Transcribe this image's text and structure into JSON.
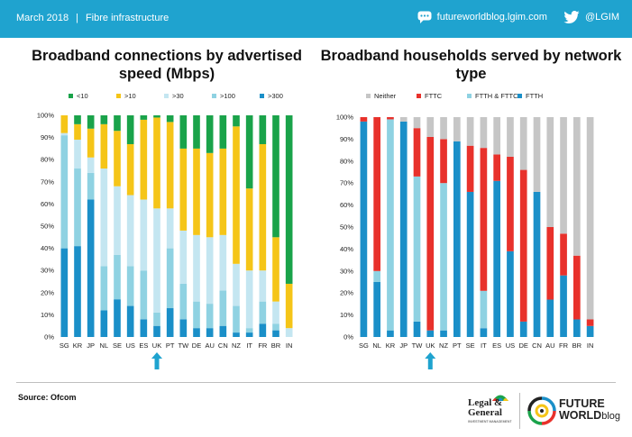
{
  "header": {
    "date": "March 2018",
    "separator": "|",
    "topic": "Fibre infrastructure",
    "website": "futureworldblog.lgim.com",
    "twitter": "@LGIM",
    "bar_color": "#1fa3cf"
  },
  "footer": {
    "source": "Source: Ofcom",
    "legal_general": [
      "Legal &",
      "General"
    ],
    "legal_general_sub": "INVESTMENT MANAGEMENT",
    "future": "FUTURE",
    "world": "WORLD",
    "blog": "blog"
  },
  "chart_data": [
    {
      "type": "bar",
      "stacked": true,
      "title": "Broadband connections by advertised speed (Mbps)",
      "categories": [
        "SG",
        "KR",
        "JP",
        "NL",
        "SE",
        "US",
        "ES",
        "UK",
        "PT",
        "TW",
        "DE",
        "AU",
        "CN",
        "NZ",
        "IT",
        "FR",
        "BR",
        "IN"
      ],
      "series": [
        {
          "name": ">300",
          "color": "#1a8fc8",
          "values": [
            40,
            41,
            62,
            12,
            17,
            14,
            8,
            5,
            13,
            8,
            4,
            4,
            5,
            2,
            2,
            6,
            3,
            0
          ]
        },
        {
          "name": ">100",
          "color": "#8fd2e2",
          "values": [
            51,
            35,
            12,
            20,
            20,
            18,
            22,
            6,
            27,
            16,
            12,
            11,
            16,
            12,
            2,
            10,
            3,
            0
          ]
        },
        {
          "name": ">30",
          "color": "#c4e6f1",
          "values": [
            1,
            13,
            7,
            44,
            31,
            32,
            32,
            47,
            18,
            24,
            30,
            30,
            25,
            19,
            26,
            14,
            10,
            4
          ]
        },
        {
          "name": ">10",
          "color": "#f5c518",
          "values": [
            8,
            7,
            13,
            20,
            25,
            23,
            36,
            41,
            39,
            37,
            39,
            38,
            39,
            62,
            37,
            57,
            29,
            20
          ]
        },
        {
          "name": "<10",
          "color": "#1aa34a",
          "values": [
            0,
            4,
            6,
            4,
            7,
            13,
            2,
            1,
            3,
            15,
            15,
            17,
            15,
            5,
            33,
            13,
            55,
            76
          ]
        }
      ],
      "legend_order": [
        "<10",
        ">10",
        ">30",
        ">100",
        ">300"
      ],
      "legend_position": "top",
      "ylim": [
        0,
        100
      ],
      "yticks": [
        "0%",
        "10%",
        "20%",
        "30%",
        "40%",
        "50%",
        "60%",
        "70%",
        "80%",
        "90%",
        "100%"
      ],
      "highlight": "UK",
      "arrow_color": "#1fa3cf"
    },
    {
      "type": "bar",
      "stacked": true,
      "title": "Broadband households served by network type",
      "categories": [
        "SG",
        "NL",
        "KR",
        "JP",
        "TW",
        "UK",
        "NZ",
        "PT",
        "SE",
        "IT",
        "ES",
        "US",
        "DE",
        "CN",
        "AU",
        "FR",
        "BR",
        "IN"
      ],
      "series": [
        {
          "name": "FTTH",
          "color": "#1a8fc8",
          "values": [
            98,
            25,
            3,
            98,
            7,
            3,
            3,
            89,
            66,
            4,
            71,
            39,
            7,
            66,
            17,
            28,
            8,
            5
          ]
        },
        {
          "name": "FTTH & FTTC",
          "color": "#8fd2e2",
          "values": [
            0,
            5,
            96,
            0,
            66,
            0,
            67,
            0,
            0,
            17,
            0,
            0,
            0,
            0,
            0,
            0,
            0,
            0
          ]
        },
        {
          "name": "FTTC",
          "color": "#e8312b",
          "values": [
            2,
            70,
            1,
            0,
            22,
            88,
            20,
            0,
            21,
            65,
            12,
            43,
            69,
            0,
            33,
            19,
            29,
            3
          ]
        },
        {
          "name": "Neither",
          "color": "#c6c6c6",
          "values": [
            0,
            0,
            0,
            2,
            5,
            9,
            10,
            11,
            13,
            14,
            17,
            18,
            24,
            34,
            50,
            53,
            63,
            92
          ]
        }
      ],
      "legend_order": [
        "Neither",
        "FTTC",
        "FTTH & FTTC",
        "FTTH"
      ],
      "legend_position": "top",
      "ylim": [
        0,
        100
      ],
      "yticks": [
        "0%",
        "10%",
        "20%",
        "30%",
        "40%",
        "50%",
        "60%",
        "70%",
        "80%",
        "90%",
        "100%"
      ],
      "highlight": "UK",
      "arrow_color": "#1fa3cf"
    }
  ]
}
